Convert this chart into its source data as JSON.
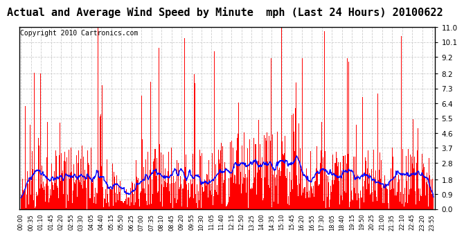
{
  "title": "Actual and Average Wind Speed by Minute  mph (Last 24 Hours) 20100622",
  "copyright": "Copyright 2010 Cartronics.com",
  "yticks": [
    0.0,
    0.9,
    1.8,
    2.8,
    3.7,
    4.6,
    5.5,
    6.4,
    7.3,
    8.2,
    9.2,
    10.1,
    11.0
  ],
  "ylim": [
    0.0,
    11.0
  ],
  "bar_color": "#FF0000",
  "line_color": "#0000FF",
  "bg_color": "#FFFFFF",
  "grid_color": "#CCCCCC",
  "title_fontsize": 11,
  "copyright_fontsize": 7
}
